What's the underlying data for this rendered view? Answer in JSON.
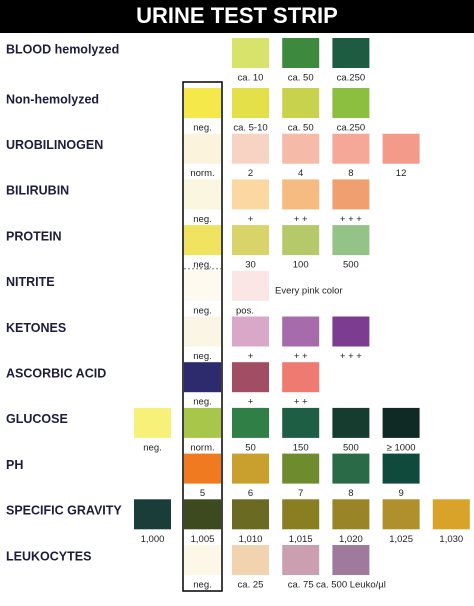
{
  "title": "URINE TEST STRIP",
  "rows": [
    {
      "label": "BLOOD hemolyzed",
      "left": [],
      "strip": null,
      "swatches": [
        {
          "color": "#d7e36a",
          "caption": "ca. 10"
        },
        {
          "color": "#3d8a3f",
          "caption": "ca. 50"
        },
        {
          "color": "#1e5c42",
          "caption": "ca.250"
        }
      ]
    },
    {
      "label": "Non-hemolyzed",
      "left": [],
      "strip": {
        "color": "#f5e84a",
        "caption": "neg."
      },
      "swatches": [
        {
          "color": "#e3e04a",
          "caption": "ca. 5-10"
        },
        {
          "color": "#c9d24c",
          "caption": "ca. 50"
        },
        {
          "color": "#8cbf3f",
          "caption": "ca.250"
        }
      ]
    },
    {
      "label": "UROBILINOGEN",
      "left": [],
      "strip": {
        "color": "#fbf3dc",
        "caption": "norm."
      },
      "swatches": [
        {
          "color": "#f7d3c4",
          "caption": "2"
        },
        {
          "color": "#f6bba8",
          "caption": "4"
        },
        {
          "color": "#f5a898",
          "caption": "8"
        },
        {
          "color": "#f39a8a",
          "caption": "12"
        }
      ]
    },
    {
      "label": "BILIRUBIN",
      "left": [],
      "strip": {
        "color": "#fbf6e0",
        "caption": "neg."
      },
      "swatches": [
        {
          "color": "#fbd8a2",
          "caption": "+"
        },
        {
          "color": "#f5bb80",
          "caption": "+ +"
        },
        {
          "color": "#ef9f70",
          "caption": "+ + +"
        }
      ]
    },
    {
      "label": "PROTEIN",
      "left": [],
      "strip": {
        "color": "#efe360",
        "caption": "neg."
      },
      "swatches": [
        {
          "color": "#d8d46a",
          "caption": "30"
        },
        {
          "color": "#b5c86a",
          "caption": "100"
        },
        {
          "color": "#94c387",
          "caption": "500"
        }
      ]
    },
    {
      "label": "NITRITE",
      "left": [],
      "strip": {
        "color": "#fffaf0",
        "caption": "neg."
      },
      "swatches": [
        {
          "color": "#fbe6e6",
          "caption": "pos."
        }
      ],
      "note": "Every pink color"
    },
    {
      "label": "KETONES",
      "left": [],
      "strip": {
        "color": "#fbf5e6",
        "caption": "neg."
      },
      "swatches": [
        {
          "color": "#d9a8c9",
          "caption": "+"
        },
        {
          "color": "#a66bab",
          "caption": "+ +"
        },
        {
          "color": "#7c3c8f",
          "caption": "+ + +"
        }
      ]
    },
    {
      "label": "ASCORBIC ACID",
      "left": [],
      "strip": {
        "color": "#2e2a6e",
        "caption": "neg."
      },
      "swatches": [
        {
          "color": "#a14d63",
          "caption": "+"
        },
        {
          "color": "#ef7a72",
          "caption": "+ +"
        }
      ]
    },
    {
      "label": "GLUCOSE",
      "left": [
        {
          "color": "#f7f17a",
          "caption": "neg."
        }
      ],
      "strip": {
        "color": "#a8c64a",
        "caption": "norm."
      },
      "swatches": [
        {
          "color": "#2f7f46",
          "caption": "50"
        },
        {
          "color": "#1e5e44",
          "caption": "150"
        },
        {
          "color": "#163c30",
          "caption": "500"
        },
        {
          "color": "#0f2a24",
          "caption": "≥ 1000"
        }
      ]
    },
    {
      "label": "PH",
      "left": [],
      "strip": {
        "color": "#ef7a1f",
        "caption": "5"
      },
      "swatches": [
        {
          "color": "#c9a02d",
          "caption": "6"
        },
        {
          "color": "#6e8c2e",
          "caption": "7"
        },
        {
          "color": "#2b6a46",
          "caption": "8"
        },
        {
          "color": "#0f4a3c",
          "caption": "9"
        }
      ]
    },
    {
      "label": "SPECIFIC GRAVITY",
      "left": [
        {
          "color": "#1a3d3a",
          "caption": "1,000"
        }
      ],
      "strip": {
        "color": "#3d4a20",
        "caption": "1,005"
      },
      "swatches": [
        {
          "color": "#6a6a22",
          "caption": "1,010"
        },
        {
          "color": "#8a7e22",
          "caption": "1,015"
        },
        {
          "color": "#9a8428",
          "caption": "1,020"
        },
        {
          "color": "#b0902c",
          "caption": "1,025"
        },
        {
          "color": "#d8a328",
          "caption": "1,030"
        }
      ]
    },
    {
      "label": "LEUKOCYTES",
      "left": [],
      "strip": {
        "color": "#fdf7e8",
        "caption": "neg."
      },
      "swatches": [
        {
          "color": "#f2d3b0",
          "caption": "ca. 25"
        },
        {
          "color": "#caa0b0",
          "caption": "ca. 75"
        },
        {
          "color": "#a07a9c",
          "caption": "ca. 500 Leuko/µl"
        }
      ]
    }
  ]
}
